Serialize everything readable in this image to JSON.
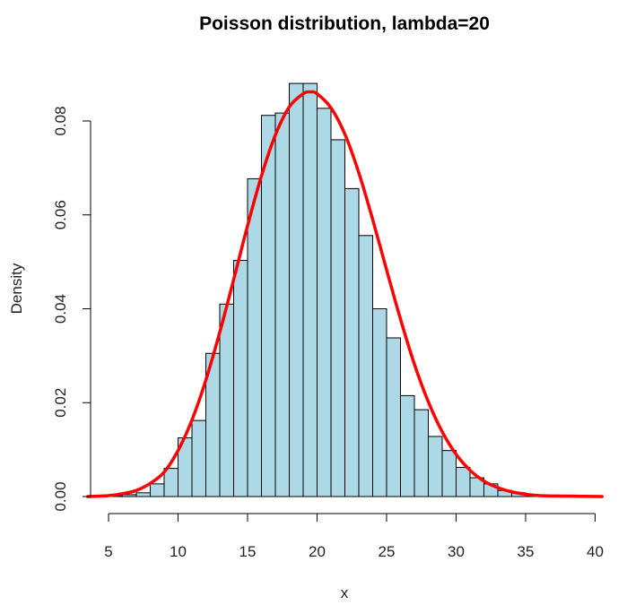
{
  "chart_data": {
    "type": "bar",
    "title": "Poisson distribution, lambda=20",
    "xlabel": "x",
    "ylabel": "Density",
    "xlim": [
      3.5,
      40.5
    ],
    "ylim": [
      0,
      0.09
    ],
    "x_ticks": [
      5,
      10,
      15,
      20,
      25,
      30,
      35,
      40
    ],
    "x_tick_labels": [
      "5",
      "10",
      "15",
      "20",
      "25",
      "30",
      "35",
      "40"
    ],
    "y_ticks": [
      0,
      0.02,
      0.04,
      0.06,
      0.08
    ],
    "y_tick_labels": [
      "0.00",
      "0.02",
      "0.04",
      "0.06",
      "0.08"
    ],
    "histogram": {
      "bin_edges": [
        3,
        4,
        5,
        6,
        7,
        8,
        9,
        10,
        11,
        12,
        13,
        14,
        15,
        16,
        17,
        18,
        19,
        20,
        21,
        22,
        23,
        24,
        25,
        26,
        27,
        28,
        29,
        30,
        31,
        32,
        33,
        34,
        35,
        36,
        37,
        38,
        39,
        40
      ],
      "density": [
        0.0,
        0.0001,
        0.0002,
        0.0004,
        0.0008,
        0.0027,
        0.006,
        0.0125,
        0.0162,
        0.0305,
        0.041,
        0.0503,
        0.0677,
        0.0812,
        0.0817,
        0.088,
        0.088,
        0.0827,
        0.076,
        0.0656,
        0.0556,
        0.04,
        0.0338,
        0.0215,
        0.0185,
        0.0128,
        0.0098,
        0.0062,
        0.004,
        0.0027,
        0.0013,
        0.0008,
        0.0004,
        0.0002,
        0.0001,
        0.0001,
        0.0
      ],
      "fill_color": "#add8e6",
      "edge_color": "#000000"
    },
    "density_curve": {
      "color": "#ff0000",
      "x": [
        3.5,
        5,
        6,
        7,
        8,
        9,
        10,
        11,
        12,
        13,
        14,
        15,
        16,
        17,
        18,
        19,
        19.5,
        20,
        21,
        22,
        23,
        24,
        25,
        26,
        27,
        28,
        29,
        30,
        31,
        32,
        33,
        34,
        35,
        36,
        38,
        40.5
      ],
      "y": [
        0.0,
        0.0002,
        0.0006,
        0.0013,
        0.0028,
        0.0052,
        0.0098,
        0.0163,
        0.0248,
        0.035,
        0.0462,
        0.0577,
        0.0683,
        0.077,
        0.083,
        0.0858,
        0.0862,
        0.0858,
        0.0828,
        0.0772,
        0.069,
        0.059,
        0.0483,
        0.0378,
        0.0282,
        0.0202,
        0.0138,
        0.009,
        0.0056,
        0.0033,
        0.0019,
        0.001,
        0.0005,
        0.0002,
        0.0001,
        0.0
      ]
    }
  }
}
